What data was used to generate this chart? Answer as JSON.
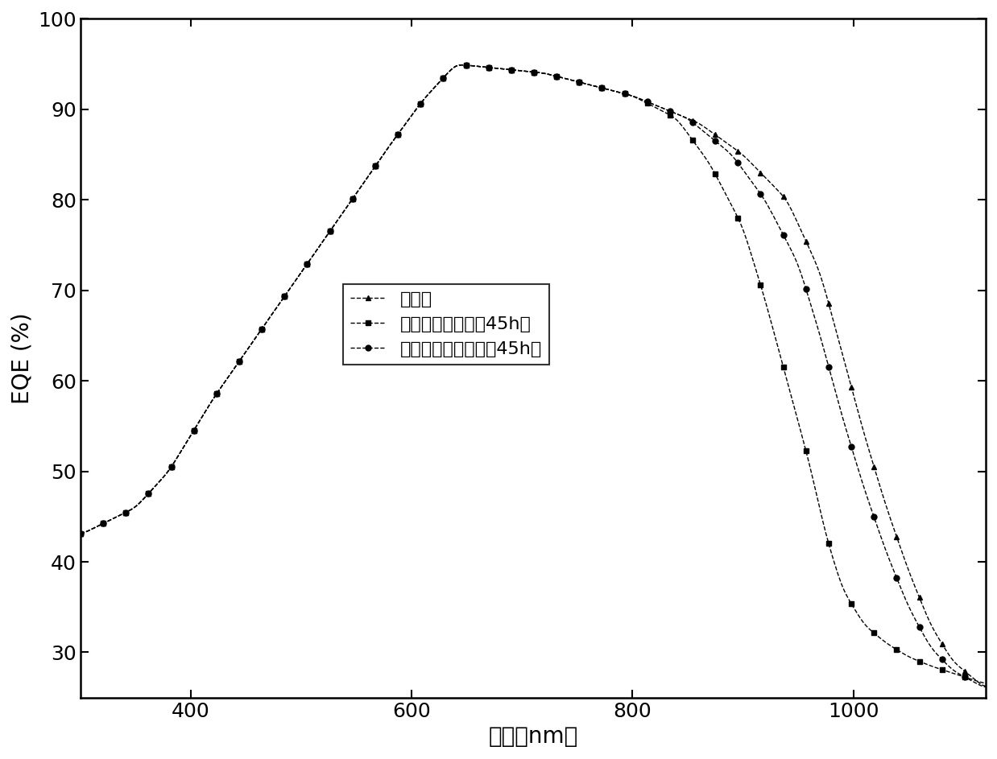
{
  "ylabel": "EQE (%)",
  "xlabel": "波长（nm）",
  "ylim": [
    25,
    100
  ],
  "xlim": [
    300,
    1120
  ],
  "yticks": [
    30,
    40,
    50,
    60,
    70,
    80,
    90,
    100
  ],
  "xticks": [
    400,
    600,
    800,
    1000
  ],
  "legend_labels": [
    "光衰前",
    "常规烧结曲线光衰45h后",
    "本发明烧结曲线光衰45h后"
  ],
  "line_color": "#000000",
  "bg_color": "#ffffff",
  "marker1": "^",
  "marker2": "s",
  "marker3": "o",
  "markersize": 5,
  "linewidth": 1.0,
  "linestyle": "--",
  "font_size_label": 20,
  "font_size_tick": 18,
  "font_size_legend": 16
}
